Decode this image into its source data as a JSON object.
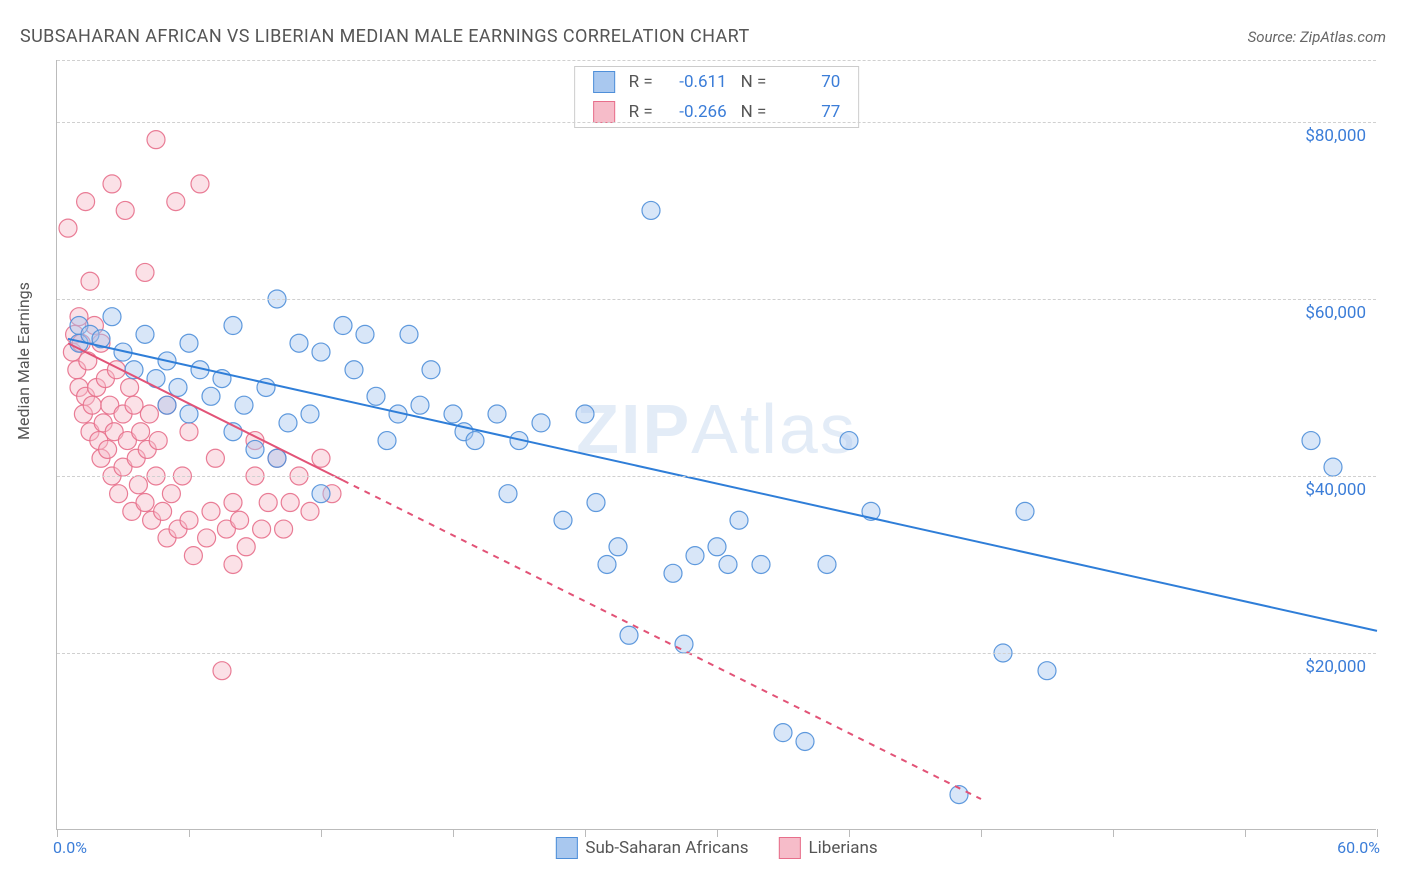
{
  "title": "SUBSAHARAN AFRICAN VS LIBERIAN MEDIAN MALE EARNINGS CORRELATION CHART",
  "source_prefix": "Source: ",
  "source": "ZipAtlas.com",
  "ylabel": "Median Male Earnings",
  "watermark1": "ZIP",
  "watermark2": "Atlas",
  "chart": {
    "type": "scatter",
    "xlim": [
      0,
      60
    ],
    "ylim": [
      0,
      87000
    ],
    "x_unit": "%",
    "y_prefix": "$",
    "xtick_positions": [
      0,
      6,
      12,
      18,
      24,
      30,
      36,
      42,
      48,
      54,
      60
    ],
    "x_min_label": "0.0%",
    "x_max_label": "60.0%",
    "ytick_values": [
      20000,
      40000,
      60000,
      80000
    ],
    "ytick_labels": [
      "$20,000",
      "$40,000",
      "$60,000",
      "$80,000"
    ],
    "grid_color": "#d0d0d0",
    "axis_color": "#bbbbbb",
    "background_color": "#ffffff",
    "tick_label_color": "#3b7dd8",
    "marker_radius": 9,
    "marker_opacity": 0.45,
    "marker_stroke_opacity": 0.9,
    "line_width": 2,
    "series": [
      {
        "name": "Sub-Saharan Africans",
        "color_fill": "#a9c8ef",
        "color_stroke": "#4f8fd9",
        "line_color": "#2f7ed8",
        "R": "-0.611",
        "N": "70",
        "trend": {
          "x1": 0.5,
          "y1": 55500,
          "x2": 60,
          "y2": 22500,
          "style": "solid"
        },
        "points": [
          [
            1,
            57000
          ],
          [
            1,
            55000
          ],
          [
            1.5,
            56000
          ],
          [
            2,
            55500
          ],
          [
            2.5,
            58000
          ],
          [
            3,
            54000
          ],
          [
            3.5,
            52000
          ],
          [
            4,
            56000
          ],
          [
            4.5,
            51000
          ],
          [
            5,
            53000
          ],
          [
            5,
            48000
          ],
          [
            5.5,
            50000
          ],
          [
            6,
            55000
          ],
          [
            6,
            47000
          ],
          [
            6.5,
            52000
          ],
          [
            7,
            49000
          ],
          [
            7.5,
            51000
          ],
          [
            8,
            57000
          ],
          [
            8,
            45000
          ],
          [
            8.5,
            48000
          ],
          [
            9,
            43000
          ],
          [
            9.5,
            50000
          ],
          [
            10,
            60000
          ],
          [
            10,
            42000
          ],
          [
            10.5,
            46000
          ],
          [
            11,
            55000
          ],
          [
            11.5,
            47000
          ],
          [
            12,
            54000
          ],
          [
            12,
            38000
          ],
          [
            13,
            57000
          ],
          [
            13.5,
            52000
          ],
          [
            14,
            56000
          ],
          [
            14.5,
            49000
          ],
          [
            15,
            44000
          ],
          [
            15.5,
            47000
          ],
          [
            16,
            56000
          ],
          [
            16.5,
            48000
          ],
          [
            17,
            52000
          ],
          [
            18,
            47000
          ],
          [
            18.5,
            45000
          ],
          [
            19,
            44000
          ],
          [
            20,
            47000
          ],
          [
            20.5,
            38000
          ],
          [
            21,
            44000
          ],
          [
            22,
            46000
          ],
          [
            23,
            35000
          ],
          [
            24,
            47000
          ],
          [
            24.5,
            37000
          ],
          [
            25,
            30000
          ],
          [
            25.5,
            32000
          ],
          [
            26,
            22000
          ],
          [
            27,
            70000
          ],
          [
            28,
            29000
          ],
          [
            28.5,
            21000
          ],
          [
            29,
            31000
          ],
          [
            30,
            32000
          ],
          [
            30.5,
            30000
          ],
          [
            31,
            35000
          ],
          [
            32,
            30000
          ],
          [
            33,
            11000
          ],
          [
            34,
            10000
          ],
          [
            35,
            30000
          ],
          [
            36,
            44000
          ],
          [
            37,
            36000
          ],
          [
            41,
            4000
          ],
          [
            43,
            20000
          ],
          [
            44,
            36000
          ],
          [
            45,
            18000
          ],
          [
            57,
            44000
          ],
          [
            58,
            41000
          ]
        ]
      },
      {
        "name": "Liberians",
        "color_fill": "#f6bcc9",
        "color_stroke": "#e76f8b",
        "line_color": "#e25377",
        "R": "-0.266",
        "N": "77",
        "trend_solid": {
          "x1": 0.5,
          "y1": 55000,
          "x2": 13,
          "y2": 39500,
          "style": "solid"
        },
        "trend_dashed": {
          "x1": 13,
          "y1": 39500,
          "x2": 42,
          "y2": 3500,
          "style": "dashed"
        },
        "points": [
          [
            0.5,
            68000
          ],
          [
            0.7,
            54000
          ],
          [
            0.8,
            56000
          ],
          [
            0.9,
            52000
          ],
          [
            1,
            58000
          ],
          [
            1,
            50000
          ],
          [
            1.1,
            55000
          ],
          [
            1.2,
            47000
          ],
          [
            1.3,
            49000
          ],
          [
            1.3,
            71000
          ],
          [
            1.4,
            53000
          ],
          [
            1.5,
            45000
          ],
          [
            1.5,
            62000
          ],
          [
            1.6,
            48000
          ],
          [
            1.7,
            57000
          ],
          [
            1.8,
            50000
          ],
          [
            1.9,
            44000
          ],
          [
            2,
            55000
          ],
          [
            2,
            42000
          ],
          [
            2.1,
            46000
          ],
          [
            2.2,
            51000
          ],
          [
            2.3,
            43000
          ],
          [
            2.4,
            48000
          ],
          [
            2.5,
            73000
          ],
          [
            2.5,
            40000
          ],
          [
            2.6,
            45000
          ],
          [
            2.7,
            52000
          ],
          [
            2.8,
            38000
          ],
          [
            3,
            47000
          ],
          [
            3,
            41000
          ],
          [
            3.1,
            70000
          ],
          [
            3.2,
            44000
          ],
          [
            3.3,
            50000
          ],
          [
            3.4,
            36000
          ],
          [
            3.5,
            48000
          ],
          [
            3.6,
            42000
          ],
          [
            3.7,
            39000
          ],
          [
            3.8,
            45000
          ],
          [
            4,
            63000
          ],
          [
            4,
            37000
          ],
          [
            4.1,
            43000
          ],
          [
            4.2,
            47000
          ],
          [
            4.3,
            35000
          ],
          [
            4.5,
            78000
          ],
          [
            4.5,
            40000
          ],
          [
            4.6,
            44000
          ],
          [
            4.8,
            36000
          ],
          [
            5,
            48000
          ],
          [
            5,
            33000
          ],
          [
            5.2,
            38000
          ],
          [
            5.4,
            71000
          ],
          [
            5.5,
            34000
          ],
          [
            5.7,
            40000
          ],
          [
            6,
            35000
          ],
          [
            6,
            45000
          ],
          [
            6.2,
            31000
          ],
          [
            6.5,
            73000
          ],
          [
            6.8,
            33000
          ],
          [
            7,
            36000
          ],
          [
            7.2,
            42000
          ],
          [
            7.5,
            18000
          ],
          [
            7.7,
            34000
          ],
          [
            8,
            37000
          ],
          [
            8,
            30000
          ],
          [
            8.3,
            35000
          ],
          [
            8.6,
            32000
          ],
          [
            9,
            40000
          ],
          [
            9,
            44000
          ],
          [
            9.3,
            34000
          ],
          [
            9.6,
            37000
          ],
          [
            10,
            42000
          ],
          [
            10.3,
            34000
          ],
          [
            10.6,
            37000
          ],
          [
            11,
            40000
          ],
          [
            11.5,
            36000
          ],
          [
            12,
            42000
          ],
          [
            12.5,
            38000
          ]
        ]
      }
    ]
  },
  "legend_top": {
    "r_label": "R =",
    "n_label": "N ="
  },
  "legend_bottom": {
    "items": [
      "Sub-Saharan Africans",
      "Liberians"
    ]
  }
}
